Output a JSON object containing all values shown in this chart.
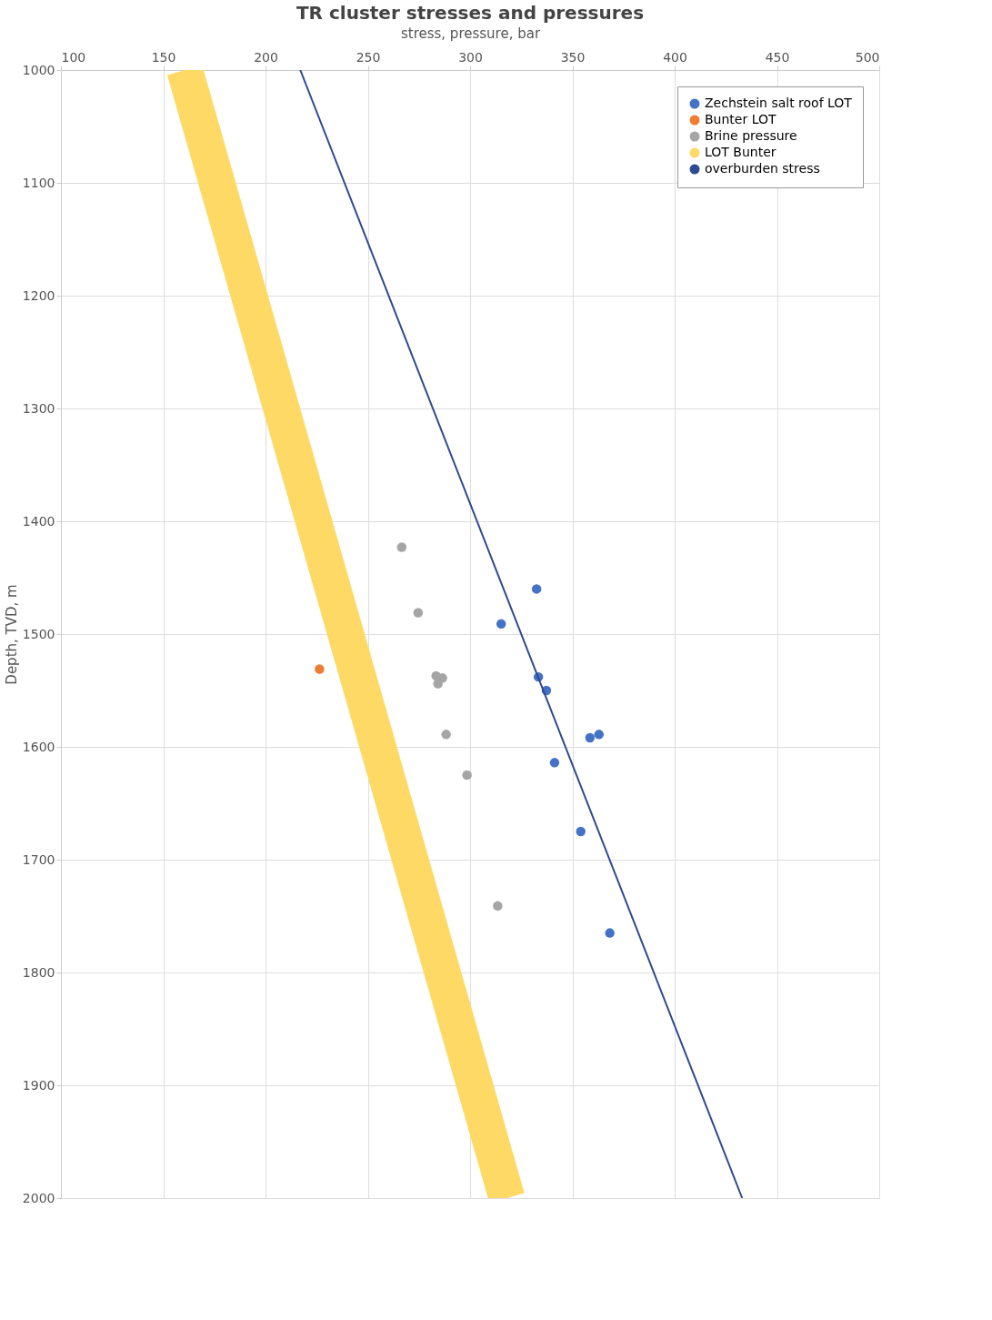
{
  "chart_data": {
    "type": "scatter",
    "title": "TR cluster stresses and pressures",
    "xlabel": "stress, pressure, bar",
    "ylabel": "Depth, TVD, m",
    "xlim": [
      100,
      500
    ],
    "xticks": [
      100,
      150,
      200,
      250,
      300,
      350,
      400,
      450,
      500
    ],
    "ylim": [
      2000,
      1000
    ],
    "yticks": [
      1000,
      1100,
      1200,
      1300,
      1400,
      1500,
      1600,
      1700,
      1800,
      1900,
      2000
    ],
    "grid": true,
    "legend": "top right",
    "marker": "circle",
    "series": [
      {
        "name": "Zechstein salt roof LOT",
        "color": "#4472c4",
        "x": [
          332.5,
          315.2,
          333.4,
          337.3,
          358.6,
          363,
          341.3,
          354.1,
          368.3
        ],
        "values": [
          1460,
          1491,
          1538,
          1550,
          1592,
          1589,
          1614,
          1675,
          1765
        ]
      },
      {
        "name": "Bunter LOT",
        "color": "#ed7d31",
        "x": [
          226.4
        ],
        "values": [
          1531
        ]
      },
      {
        "name": "Brine pressure",
        "color": "#a5a5a5",
        "x": [
          266.6,
          274.6,
          283.4,
          286.5,
          284.3,
          288.3,
          298.5,
          313.5
        ],
        "values": [
          1423,
          1481,
          1537,
          1539,
          1544,
          1589,
          1625,
          1741
        ]
      },
      {
        "name": "LOT Bunter",
        "type": "line",
        "marker": "none",
        "color": "#ffd966",
        "x": [
          160.5,
          318
        ],
        "values": [
          1000,
          2000
        ]
      },
      {
        "name": "overburden stress",
        "type": "line",
        "marker": "none",
        "color": "#2f4b8f",
        "x": [
          217,
          433
        ],
        "values": [
          1000,
          2000
        ]
      }
    ]
  }
}
